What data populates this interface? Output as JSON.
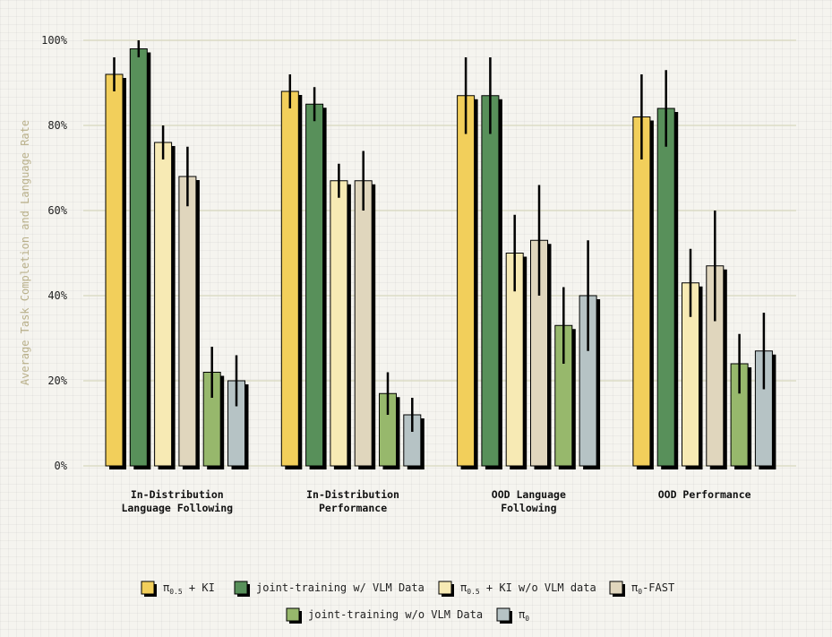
{
  "chart_data": {
    "type": "bar",
    "title": "",
    "xlabel": "",
    "ylabel": "Average Task Completion and Language Rate",
    "ylim": [
      0,
      100
    ],
    "yticks": [
      0,
      20,
      40,
      60,
      80,
      100
    ],
    "ytick_labels": [
      "0%",
      "20%",
      "40%",
      "60%",
      "80%",
      "100%"
    ],
    "grid": true,
    "legend_position": "bottom-center",
    "categories": [
      [
        "In-Distribution",
        "Language Following"
      ],
      [
        "In-Distribution",
        "Performance"
      ],
      [
        "OOD Language",
        "Following"
      ],
      [
        "OOD Performance"
      ]
    ],
    "series": [
      {
        "name": "π0.5 + KI",
        "label_main": "π",
        "label_sub": "0.5",
        "label_rest": " + KI",
        "color": "#f2cf5b",
        "values": [
          92,
          88,
          87,
          82
        ],
        "err_low": [
          88,
          84,
          78,
          72
        ],
        "err_high": [
          96,
          92,
          96,
          92
        ]
      },
      {
        "name": "joint-training w/ VLM Data",
        "label_main": "joint-training w/ VLM Data",
        "label_sub": "",
        "label_rest": "",
        "color": "#58905a",
        "values": [
          98,
          85,
          87,
          84
        ],
        "err_low": [
          96,
          81,
          78,
          75
        ],
        "err_high": [
          100,
          89,
          96,
          93
        ]
      },
      {
        "name": "π0.5 + KI w/o VLM data",
        "label_main": "π",
        "label_sub": "0.5",
        "label_rest": " + KI w/o VLM data",
        "color": "#f7eab4",
        "values": [
          76,
          67,
          50,
          43
        ],
        "err_low": [
          72,
          63,
          41,
          35
        ],
        "err_high": [
          80,
          71,
          59,
          51
        ]
      },
      {
        "name": "π0-FAST",
        "label_main": "π",
        "label_sub": "0",
        "label_rest": "-FAST",
        "color": "#e0d6bd",
        "values": [
          68,
          67,
          53,
          47
        ],
        "err_low": [
          61,
          60,
          40,
          34
        ],
        "err_high": [
          75,
          74,
          66,
          60
        ]
      },
      {
        "name": "joint-training w/o VLM Data",
        "label_main": "joint-training w/o VLM Data",
        "label_sub": "",
        "label_rest": "",
        "color": "#97b86c",
        "values": [
          22,
          17,
          33,
          24
        ],
        "err_low": [
          16,
          12,
          24,
          17
        ],
        "err_high": [
          28,
          22,
          42,
          31
        ]
      },
      {
        "name": "π0",
        "label_main": "π",
        "label_sub": "0",
        "label_rest": "",
        "color": "#b6c3c5",
        "values": [
          20,
          12,
          40,
          27
        ],
        "err_low": [
          14,
          8,
          27,
          18
        ],
        "err_high": [
          26,
          16,
          53,
          36
        ]
      }
    ]
  }
}
